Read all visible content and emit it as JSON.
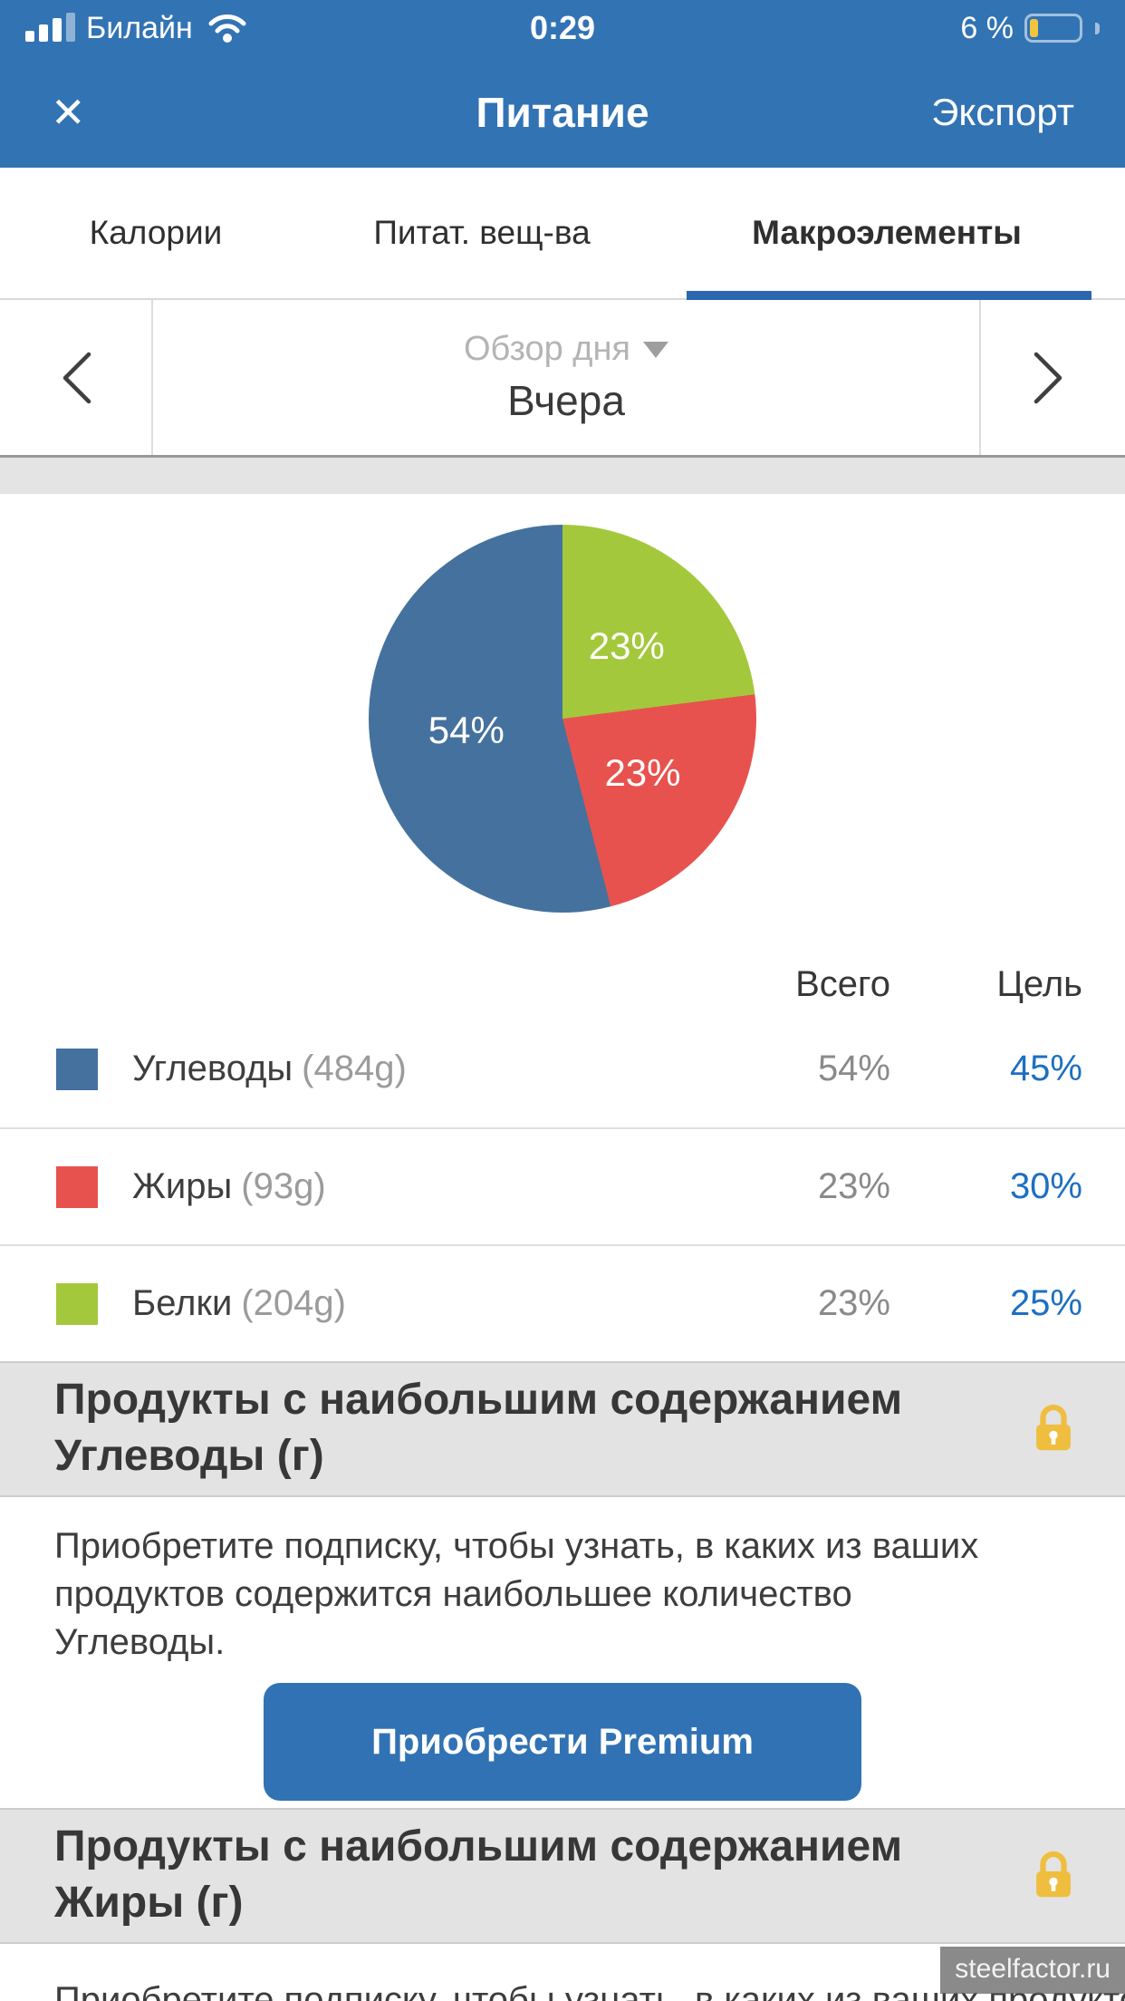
{
  "status_bar": {
    "carrier": "Билайн",
    "time": "0:29",
    "battery_percent": "6 %"
  },
  "navbar": {
    "close_glyph": "✕",
    "title": "Питание",
    "export_label": "Экспорт"
  },
  "tabs": [
    {
      "label": "Калории",
      "active": false
    },
    {
      "label": "Питат. вещ-ва",
      "active": false
    },
    {
      "label": "Макроэлементы",
      "active": true
    }
  ],
  "date_selector": {
    "mode_label": "Обзор дня",
    "value": "Вчера"
  },
  "chart_data": {
    "type": "pie",
    "title": "Макроэлементы — Обзор дня (Вчера)",
    "direction": "clockwise",
    "start_angle_deg": 0,
    "legend_position": "table-below",
    "slices": [
      {
        "label": "Белки",
        "value": 23,
        "display": "23%",
        "color": "#A4C83C"
      },
      {
        "label": "Жиры",
        "value": 23,
        "display": "23%",
        "color": "#E8524E"
      },
      {
        "label": "Углеводы",
        "value": 54,
        "display": "54%",
        "color": "#45719E"
      }
    ]
  },
  "table": {
    "headers": {
      "total": "Всего",
      "goal": "Цель"
    },
    "rows": [
      {
        "name": "Углеводы",
        "amount": "(484g)",
        "total": "54%",
        "goal": "45%",
        "color": "#45719E"
      },
      {
        "name": "Жиры",
        "amount": "(93g)",
        "total": "23%",
        "goal": "30%",
        "color": "#E8524E"
      },
      {
        "name": "Белки",
        "amount": "(204g)",
        "total": "23%",
        "goal": "25%",
        "color": "#A4C83C"
      }
    ]
  },
  "sections": [
    {
      "title_line1": "Продукты с наибольшим содержанием",
      "title_line2": "Углеводы (г)",
      "body_line1": "Приобретите подписку, чтобы узнать, в каких из ваших",
      "body_line2": "продуктов содержится наибольшее количество",
      "body_line3": "Углеводы."
    },
    {
      "title_line1": "Продукты с наибольшим содержанием",
      "title_line2": "Жиры (г)",
      "body_line1": "Приобретите подписку, чтобы узнать, в каких из ваших продуктов"
    }
  ],
  "premium_button": {
    "label": "Приобрести Premium"
  },
  "watermark": "steelfactor.ru",
  "colors": {
    "header_blue": "#3273B4",
    "tab_underline_blue": "#2B67B1",
    "button_blue": "#3172B4",
    "goal_blue": "#1D6FC2",
    "battery_yellow": "#EFC53F",
    "section_gray": "#E3E3E3",
    "lock_gold": "#EFBE3F"
  }
}
